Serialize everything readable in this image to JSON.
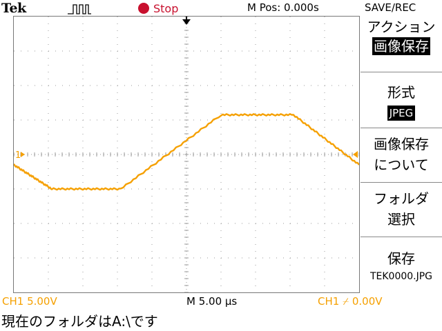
{
  "header": {
    "brand": "Tek",
    "trigger_icon": "pulse-icon",
    "run_state": "Stop",
    "position": "M Pos: 0.000s",
    "menu_title": "SAVE/REC"
  },
  "side_menu": {
    "action": {
      "label": "アクション",
      "value": "画像保存"
    },
    "format": {
      "label": "形式",
      "value": "JPEG"
    },
    "about": {
      "line1": "画像保存",
      "line2": "について"
    },
    "folder": {
      "line1": "フォルダ",
      "line2": "選択"
    },
    "save": {
      "label": "保存",
      "filename": "TEK0000.JPG"
    }
  },
  "readouts": {
    "ch1_scale": "CH1  5.00V",
    "timebase": "M 5.00 µs",
    "trigger": "CH1  ⌿  0.00V"
  },
  "status": "現在のフォルダはA:\\です",
  "markers": {
    "channel": "1"
  },
  "colors": {
    "trace": "#f5a000",
    "grid_dot": "#9a9a9a",
    "stop": "#c8102e"
  },
  "chart_data": {
    "type": "line",
    "title": "",
    "xlabel": "",
    "ylabel": "",
    "xlim": [
      0,
      10
    ],
    "ylim": [
      -4,
      4
    ],
    "series": [
      {
        "x": [
          0,
          1.1,
          3.1,
          6.0,
          8.1,
          10.0
        ],
        "values": [
          -0.3,
          -1.0,
          -1.0,
          1.15,
          1.15,
          -0.3
        ]
      }
    ]
  }
}
